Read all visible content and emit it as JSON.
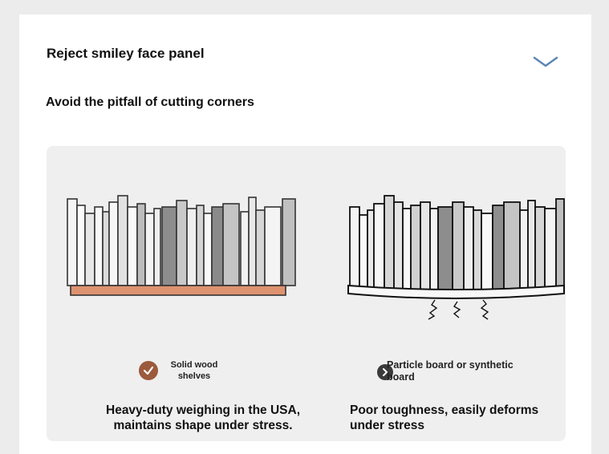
{
  "header": {
    "title": "Reject smiley face panel",
    "subtitle": "Avoid the pitfall of cutting corners",
    "toggle_icon": "chevron-down-icon"
  },
  "colors": {
    "accent": "#5b86b3",
    "wood": "#de9370",
    "good_badge": "#9c5a3c",
    "bad_badge": "#3a3a3a",
    "panel_bg": "#efefef"
  },
  "comparison": {
    "left": {
      "badge_icon": "check-icon",
      "label": "Solid wood shelves",
      "description": "Heavy-duty weighing in the USA, maintains shape under stress."
    },
    "right": {
      "badge_icon": "chevron-right-icon",
      "label": "Particle board or synthetic board",
      "description": "Poor toughness, easily deforms under stress"
    }
  }
}
